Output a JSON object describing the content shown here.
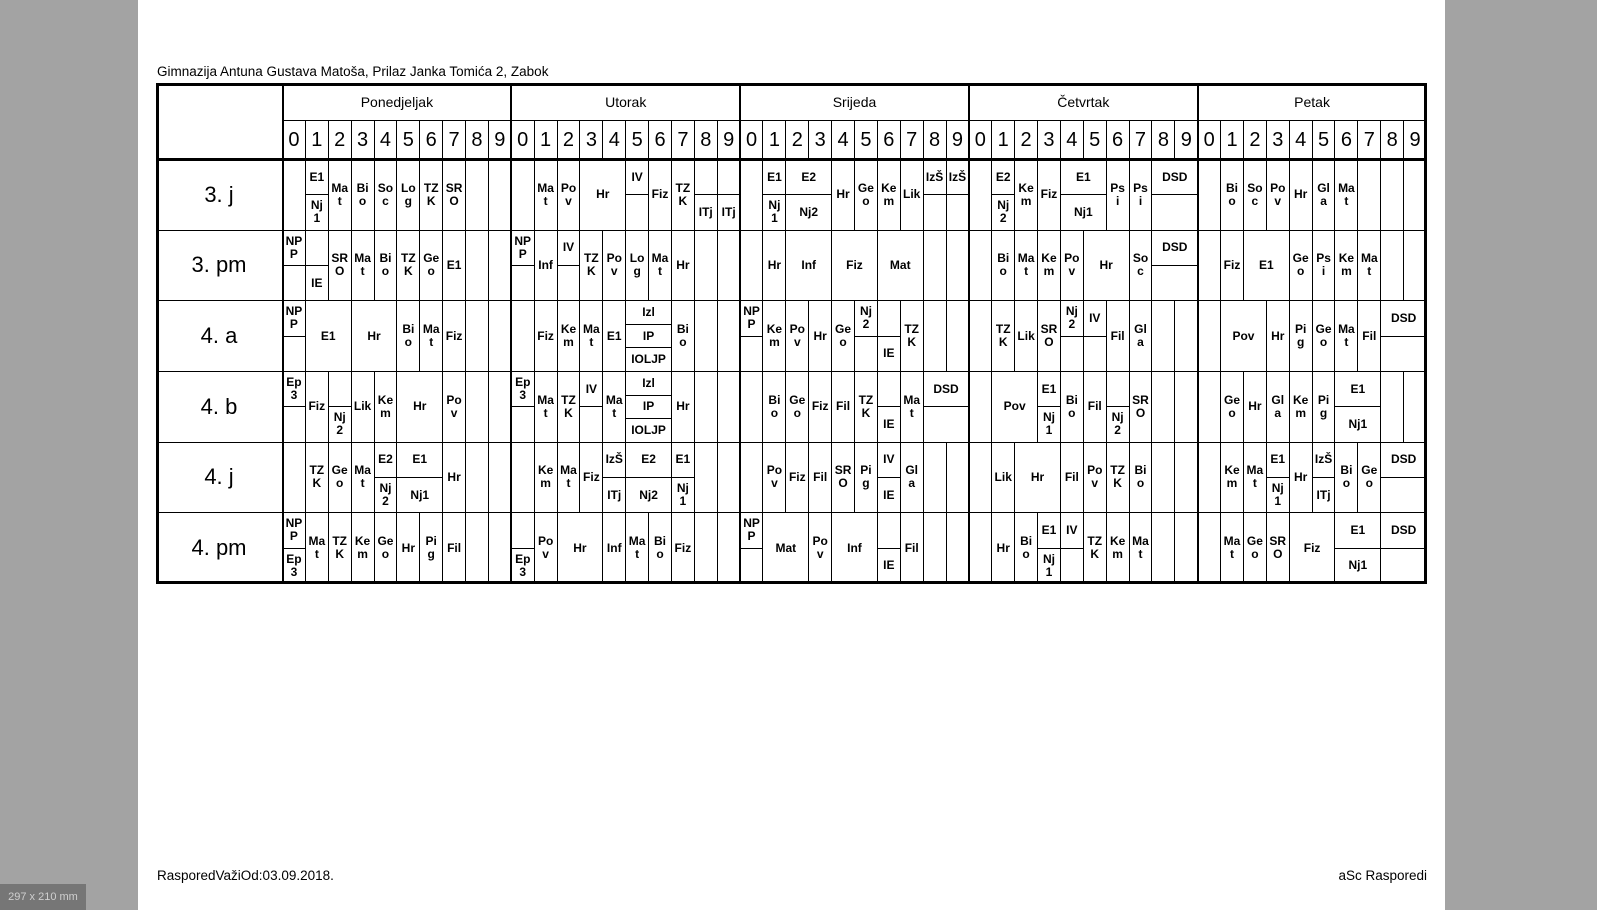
{
  "header": {
    "school": "Gimnazija Antuna Gustava Matoša, Prilaz Janka Tomića 2, Zabok"
  },
  "footer": {
    "valid_from": "RasporedVažiOd:03.09.2018.",
    "brand": "aSc Rasporedi"
  },
  "page_size_label": "297 x 210 mm",
  "days": [
    "Ponedjeljak",
    "Utorak",
    "Srijeda",
    "Četvrtak",
    "Petak"
  ],
  "periods": [
    "0",
    "1",
    "2",
    "3",
    "4",
    "5",
    "6",
    "7",
    "8",
    "9"
  ],
  "classes": [
    {
      "name": "3. j",
      "days": [
        [
          [
            1,
            1,
            [
              "E1",
              "Nj1"
            ]
          ],
          [
            2,
            1,
            "Mat"
          ],
          [
            3,
            1,
            "Bio"
          ],
          [
            4,
            1,
            "Soc"
          ],
          [
            5,
            1,
            "Log"
          ],
          [
            6,
            1,
            "TZK"
          ],
          [
            7,
            1,
            "SRO"
          ]
        ],
        [
          [
            1,
            1,
            "Mat"
          ],
          [
            2,
            1,
            "Pov"
          ],
          [
            3,
            2,
            "Hr"
          ],
          [
            5,
            1,
            [
              "IV",
              ""
            ]
          ],
          [
            6,
            1,
            "Fiz"
          ],
          [
            7,
            1,
            "TZK"
          ],
          [
            8,
            1,
            [
              "",
              "ITj"
            ]
          ],
          [
            9,
            1,
            [
              "",
              "ITj"
            ]
          ]
        ],
        [
          [
            1,
            1,
            [
              "E1",
              "Nj1"
            ]
          ],
          [
            2,
            2,
            [
              "E2",
              "Nj2"
            ]
          ],
          [
            4,
            1,
            "Hr"
          ],
          [
            5,
            1,
            "Geo"
          ],
          [
            6,
            1,
            "Kem"
          ],
          [
            7,
            1,
            "Lik"
          ],
          [
            8,
            1,
            [
              "IzŠ",
              ""
            ]
          ],
          [
            9,
            1,
            [
              "IzŠ",
              ""
            ]
          ]
        ],
        [
          [
            1,
            1,
            [
              "E2",
              "Nj2"
            ]
          ],
          [
            2,
            1,
            "Kem"
          ],
          [
            3,
            1,
            "Fiz"
          ],
          [
            4,
            2,
            [
              "E1",
              "Nj1"
            ]
          ],
          [
            6,
            1,
            "Psi"
          ],
          [
            7,
            1,
            "Psi"
          ],
          [
            8,
            2,
            [
              "DSD",
              ""
            ]
          ]
        ],
        [
          [
            1,
            1,
            "Bio"
          ],
          [
            2,
            1,
            "Soc"
          ],
          [
            3,
            1,
            "Pov"
          ],
          [
            4,
            1,
            "Hr"
          ],
          [
            5,
            1,
            "Gla"
          ],
          [
            6,
            1,
            "Mat"
          ]
        ]
      ]
    },
    {
      "name": "3. pm",
      "days": [
        [
          [
            0,
            1,
            [
              "NPP",
              ""
            ]
          ],
          [
            1,
            1,
            [
              "",
              "IE"
            ]
          ],
          [
            2,
            1,
            "SRO"
          ],
          [
            3,
            1,
            "Mat"
          ],
          [
            4,
            1,
            "Bio"
          ],
          [
            5,
            1,
            "TZK"
          ],
          [
            6,
            1,
            "Geo"
          ],
          [
            7,
            1,
            "E1"
          ]
        ],
        [
          [
            0,
            1,
            [
              "NPP",
              ""
            ]
          ],
          [
            1,
            1,
            "Inf"
          ],
          [
            2,
            1,
            [
              "IV",
              ""
            ]
          ],
          [
            3,
            1,
            "TZK"
          ],
          [
            4,
            1,
            "Pov"
          ],
          [
            5,
            1,
            "Log"
          ],
          [
            6,
            1,
            "Mat"
          ],
          [
            7,
            1,
            "Hr"
          ]
        ],
        [
          [
            1,
            1,
            "Hr"
          ],
          [
            2,
            2,
            "Inf"
          ],
          [
            4,
            2,
            "Fiz"
          ],
          [
            6,
            2,
            "Mat"
          ]
        ],
        [
          [
            1,
            1,
            "Bio"
          ],
          [
            2,
            1,
            "Mat"
          ],
          [
            3,
            1,
            "Kem"
          ],
          [
            4,
            1,
            "Pov"
          ],
          [
            5,
            2,
            "Hr"
          ],
          [
            7,
            1,
            "Soc"
          ],
          [
            8,
            2,
            [
              "DSD",
              ""
            ]
          ]
        ],
        [
          [
            1,
            1,
            "Fiz"
          ],
          [
            2,
            2,
            "E1"
          ],
          [
            4,
            1,
            "Geo"
          ],
          [
            5,
            1,
            "Psi"
          ],
          [
            6,
            1,
            "Kem"
          ],
          [
            7,
            1,
            "Mat"
          ]
        ]
      ]
    },
    {
      "name": "4. a",
      "days": [
        [
          [
            0,
            1,
            [
              "NPP",
              ""
            ]
          ],
          [
            1,
            2,
            "E1"
          ],
          [
            3,
            2,
            "Hr"
          ],
          [
            5,
            1,
            "Bio"
          ],
          [
            6,
            1,
            "Mat"
          ],
          [
            7,
            1,
            "Fiz"
          ]
        ],
        [
          [
            1,
            1,
            "Fiz"
          ],
          [
            2,
            1,
            "Kem"
          ],
          [
            3,
            1,
            "Mat"
          ],
          [
            4,
            1,
            "E1"
          ],
          [
            5,
            2,
            [
              "Izl",
              "IP",
              "IOLJP"
            ]
          ],
          [
            7,
            1,
            "Bio"
          ]
        ],
        [
          [
            0,
            1,
            [
              "NPP",
              ""
            ]
          ],
          [
            1,
            1,
            "Kem"
          ],
          [
            2,
            1,
            "Pov"
          ],
          [
            3,
            1,
            "Hr"
          ],
          [
            4,
            1,
            "Geo"
          ],
          [
            5,
            1,
            [
              "Nj2",
              ""
            ]
          ],
          [
            6,
            1,
            [
              "",
              "IE"
            ]
          ],
          [
            7,
            1,
            "TZK"
          ]
        ],
        [
          [
            1,
            1,
            "TZK"
          ],
          [
            2,
            1,
            "Lik"
          ],
          [
            3,
            1,
            "SRO"
          ],
          [
            4,
            1,
            [
              "Nj2",
              ""
            ]
          ],
          [
            5,
            1,
            [
              "IV",
              ""
            ]
          ],
          [
            6,
            1,
            "Fil"
          ],
          [
            7,
            1,
            "Gla"
          ]
        ],
        [
          [
            1,
            2,
            "Pov"
          ],
          [
            3,
            1,
            "Hr"
          ],
          [
            4,
            1,
            "Pig"
          ],
          [
            5,
            1,
            "Geo"
          ],
          [
            6,
            1,
            "Mat"
          ],
          [
            7,
            1,
            "Fil"
          ],
          [
            8,
            2,
            [
              "DSD",
              ""
            ]
          ]
        ]
      ]
    },
    {
      "name": "4. b",
      "days": [
        [
          [
            0,
            1,
            [
              "Ep3",
              ""
            ]
          ],
          [
            1,
            1,
            "Fiz"
          ],
          [
            2,
            1,
            [
              "",
              "Nj2"
            ]
          ],
          [
            3,
            1,
            "Lik"
          ],
          [
            4,
            1,
            "Kem"
          ],
          [
            5,
            2,
            "Hr"
          ],
          [
            7,
            1,
            "Pov"
          ]
        ],
        [
          [
            0,
            1,
            [
              "Ep3",
              ""
            ]
          ],
          [
            1,
            1,
            "Mat"
          ],
          [
            2,
            1,
            "TZK"
          ],
          [
            3,
            1,
            [
              "IV",
              ""
            ]
          ],
          [
            4,
            1,
            "Mat"
          ],
          [
            5,
            2,
            [
              "Izl",
              "IP",
              "IOLJP"
            ]
          ],
          [
            7,
            1,
            "Hr"
          ]
        ],
        [
          [
            1,
            1,
            "Bio"
          ],
          [
            2,
            1,
            "Geo"
          ],
          [
            3,
            1,
            "Fiz"
          ],
          [
            4,
            1,
            "Fil"
          ],
          [
            5,
            1,
            "TZK"
          ],
          [
            6,
            1,
            [
              "",
              "IE"
            ]
          ],
          [
            7,
            1,
            "Mat"
          ],
          [
            8,
            2,
            [
              "DSD",
              ""
            ]
          ]
        ],
        [
          [
            1,
            2,
            "Pov"
          ],
          [
            3,
            1,
            [
              "E1",
              "Nj1"
            ]
          ],
          [
            4,
            1,
            "Bio"
          ],
          [
            5,
            1,
            "Fil"
          ],
          [
            6,
            1,
            [
              "",
              "Nj2"
            ]
          ],
          [
            7,
            1,
            "SRO"
          ]
        ],
        [
          [
            1,
            1,
            "Geo"
          ],
          [
            2,
            1,
            "Hr"
          ],
          [
            3,
            1,
            "Gla"
          ],
          [
            4,
            1,
            "Kem"
          ],
          [
            5,
            1,
            "Pig"
          ],
          [
            6,
            2,
            [
              "E1",
              "Nj1"
            ]
          ]
        ]
      ]
    },
    {
      "name": "4. j",
      "days": [
        [
          [
            1,
            1,
            "TZK"
          ],
          [
            2,
            1,
            "Geo"
          ],
          [
            3,
            1,
            "Mat"
          ],
          [
            4,
            1,
            [
              "E2",
              "Nj2"
            ]
          ],
          [
            5,
            2,
            [
              "E1",
              "Nj1"
            ]
          ],
          [
            7,
            1,
            "Hr"
          ]
        ],
        [
          [
            1,
            1,
            "Kem"
          ],
          [
            2,
            1,
            "Mat"
          ],
          [
            3,
            1,
            "Fiz"
          ],
          [
            4,
            1,
            [
              "IzŠ",
              "ITj"
            ]
          ],
          [
            5,
            2,
            [
              "E2",
              "Nj2"
            ]
          ],
          [
            7,
            1,
            [
              "E1",
              "Nj1"
            ]
          ]
        ],
        [
          [
            1,
            1,
            "Pov"
          ],
          [
            2,
            1,
            "Fiz"
          ],
          [
            3,
            1,
            "Fil"
          ],
          [
            4,
            1,
            "SRO"
          ],
          [
            5,
            1,
            "Pig"
          ],
          [
            6,
            1,
            [
              "IV",
              "IE"
            ]
          ],
          [
            7,
            1,
            "Gla"
          ]
        ],
        [
          [
            1,
            1,
            "Lik"
          ],
          [
            2,
            2,
            "Hr"
          ],
          [
            4,
            1,
            "Fil"
          ],
          [
            5,
            1,
            "Pov"
          ],
          [
            6,
            1,
            "TZK"
          ],
          [
            7,
            1,
            "Bio"
          ]
        ],
        [
          [
            1,
            1,
            "Kem"
          ],
          [
            2,
            1,
            "Mat"
          ],
          [
            3,
            1,
            [
              "E1",
              "Nj1"
            ]
          ],
          [
            4,
            1,
            "Hr"
          ],
          [
            5,
            1,
            [
              "IzŠ",
              "ITj"
            ]
          ],
          [
            6,
            1,
            "Bio"
          ],
          [
            7,
            1,
            "Geo"
          ],
          [
            8,
            2,
            [
              "DSD",
              ""
            ]
          ]
        ]
      ]
    },
    {
      "name": "4. pm",
      "days": [
        [
          [
            0,
            1,
            [
              "NPP",
              "Ep3"
            ]
          ],
          [
            1,
            1,
            "Mat"
          ],
          [
            2,
            1,
            "TZK"
          ],
          [
            3,
            1,
            "Kem"
          ],
          [
            4,
            1,
            "Geo"
          ],
          [
            5,
            1,
            "Hr"
          ],
          [
            6,
            1,
            "Pig"
          ],
          [
            7,
            1,
            "Fil"
          ]
        ],
        [
          [
            0,
            1,
            [
              "",
              "Ep3"
            ]
          ],
          [
            1,
            1,
            "Pov"
          ],
          [
            2,
            2,
            "Hr"
          ],
          [
            4,
            1,
            "Inf"
          ],
          [
            5,
            1,
            "Mat"
          ],
          [
            6,
            1,
            "Bio"
          ],
          [
            7,
            1,
            "Fiz"
          ]
        ],
        [
          [
            0,
            1,
            [
              "NPP",
              ""
            ]
          ],
          [
            1,
            2,
            "Mat"
          ],
          [
            3,
            1,
            "Pov"
          ],
          [
            4,
            2,
            "Inf"
          ],
          [
            6,
            1,
            [
              "",
              "IE"
            ]
          ],
          [
            7,
            1,
            "Fil"
          ]
        ],
        [
          [
            1,
            1,
            "Hr"
          ],
          [
            2,
            1,
            "Bio"
          ],
          [
            3,
            1,
            [
              "E1",
              "Nj1"
            ]
          ],
          [
            4,
            1,
            [
              "IV",
              ""
            ]
          ],
          [
            5,
            1,
            "TZK"
          ],
          [
            6,
            1,
            "Kem"
          ],
          [
            7,
            1,
            "Mat"
          ]
        ],
        [
          [
            1,
            1,
            "Mat"
          ],
          [
            2,
            1,
            "Geo"
          ],
          [
            3,
            1,
            "SRO"
          ],
          [
            4,
            2,
            "Fiz"
          ],
          [
            6,
            2,
            [
              "E1",
              "Nj1"
            ]
          ],
          [
            8,
            2,
            [
              "DSD",
              ""
            ]
          ]
        ]
      ]
    }
  ]
}
